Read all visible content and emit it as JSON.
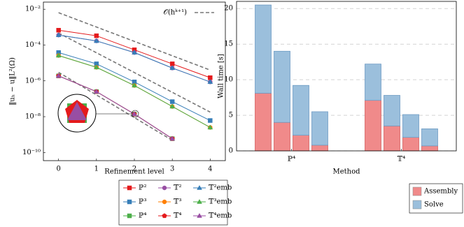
{
  "chart_data": [
    {
      "type": "line",
      "log_y": true,
      "xlabel": "Refinement level",
      "ylabel": "‖uₕ − u‖L²(Ω)",
      "x": [
        0,
        1,
        2,
        3,
        4
      ],
      "xlim": [
        -0.4,
        4.4
      ],
      "xticks": [
        0,
        1,
        2,
        3,
        4
      ],
      "ylim": [
        3.5e-11,
        0.025
      ],
      "yticks": [
        {
          "value": 0.01,
          "label": "10⁻²"
        },
        {
          "value": 0.0001,
          "label": "10⁻⁴"
        },
        {
          "value": 1e-06,
          "label": "10⁻⁶"
        },
        {
          "value": 1e-08,
          "label": "10⁻⁸"
        },
        {
          "value": 1e-10,
          "label": "10⁻¹⁰"
        }
      ],
      "series": [
        {
          "name": "ℙ²",
          "color": "#e41a1c",
          "marker": "square",
          "values": [
            0.00067,
            0.00033,
            5.4e-05,
            8.9e-06,
            1.5e-06
          ]
        },
        {
          "name": "𝕋²",
          "color": "#984ea3",
          "marker": "circle",
          "values": [
            0.00036,
            0.00017,
            3.8e-05,
            5.2e-06,
            8.7e-07
          ]
        },
        {
          "name": "𝕋²emb",
          "color": "#377eb8",
          "marker": "triangle",
          "values": [
            0.00036,
            0.00017,
            3.8e-05,
            5.2e-06,
            8.7e-07
          ]
        },
        {
          "name": "ℙ³",
          "color": "#377eb8",
          "marker": "square",
          "values": [
            3.8e-05,
            8.9e-06,
            8.7e-07,
            6.9e-08,
            6.1e-09
          ]
        },
        {
          "name": "𝕋³",
          "color": "#ff7f00",
          "marker": "circle",
          "values": [
            2.6e-05,
            5.7e-06,
            5.5e-07,
            3.7e-08,
            2.5e-09
          ]
        },
        {
          "name": "𝕋³emb",
          "color": "#4daf4a",
          "marker": "triangle",
          "values": [
            2.6e-05,
            5.7e-06,
            5.5e-07,
            3.7e-08,
            2.5e-09
          ]
        },
        {
          "name": "ℙ⁴",
          "color": "#4daf4a",
          "marker": "square",
          "values": [
            1.9e-06,
            2.5e-07,
            1.4e-08,
            5.9e-10,
            null
          ]
        },
        {
          "name": "𝕋⁴",
          "color": "#e41a1c",
          "marker": "pentagon",
          "values": [
            1.9e-06,
            2.5e-07,
            1.4e-08,
            5.9e-10,
            null
          ]
        },
        {
          "name": "𝕋⁴emb",
          "color": "#984ea3",
          "marker": "triangle",
          "values": [
            1.9e-06,
            2.5e-07,
            1.4e-08,
            5.9e-10,
            null
          ]
        }
      ],
      "reference": {
        "label": "𝒪(hᵏ⁺¹)",
        "color": "#777777",
        "lines": [
          {
            "x": [
              0,
              4
            ],
            "values": [
              0.0064,
              4e-06
            ]
          },
          {
            "x": [
              0,
              4
            ],
            "values": [
              0.00047,
              1.8e-08
            ]
          },
          {
            "x": [
              0,
              3
            ],
            "values": [
              3e-06,
              4.8e-10
            ]
          }
        ]
      }
    },
    {
      "type": "stacked_bar",
      "xlabel": "Method",
      "ylabel": "Wall time [s]",
      "categories": [
        null,
        null,
        null,
        null,
        null,
        null,
        null,
        null
      ],
      "groups": [
        "ℙ⁴",
        "𝕋⁴"
      ],
      "ylim": [
        0,
        21
      ],
      "yticks": [
        0,
        5,
        10,
        15,
        20
      ],
      "grid": true,
      "series": [
        {
          "name": "Assembly",
          "color": "#f08a8a",
          "values": [
            8.1,
            4.0,
            2.2,
            0.8,
            7.1,
            3.5,
            1.9,
            0.7
          ]
        },
        {
          "name": "Solve",
          "color": "#9bbfdc",
          "values": [
            12.4,
            10.0,
            7.0,
            4.7,
            5.1,
            4.3,
            3.2,
            2.4
          ]
        }
      ]
    }
  ]
}
